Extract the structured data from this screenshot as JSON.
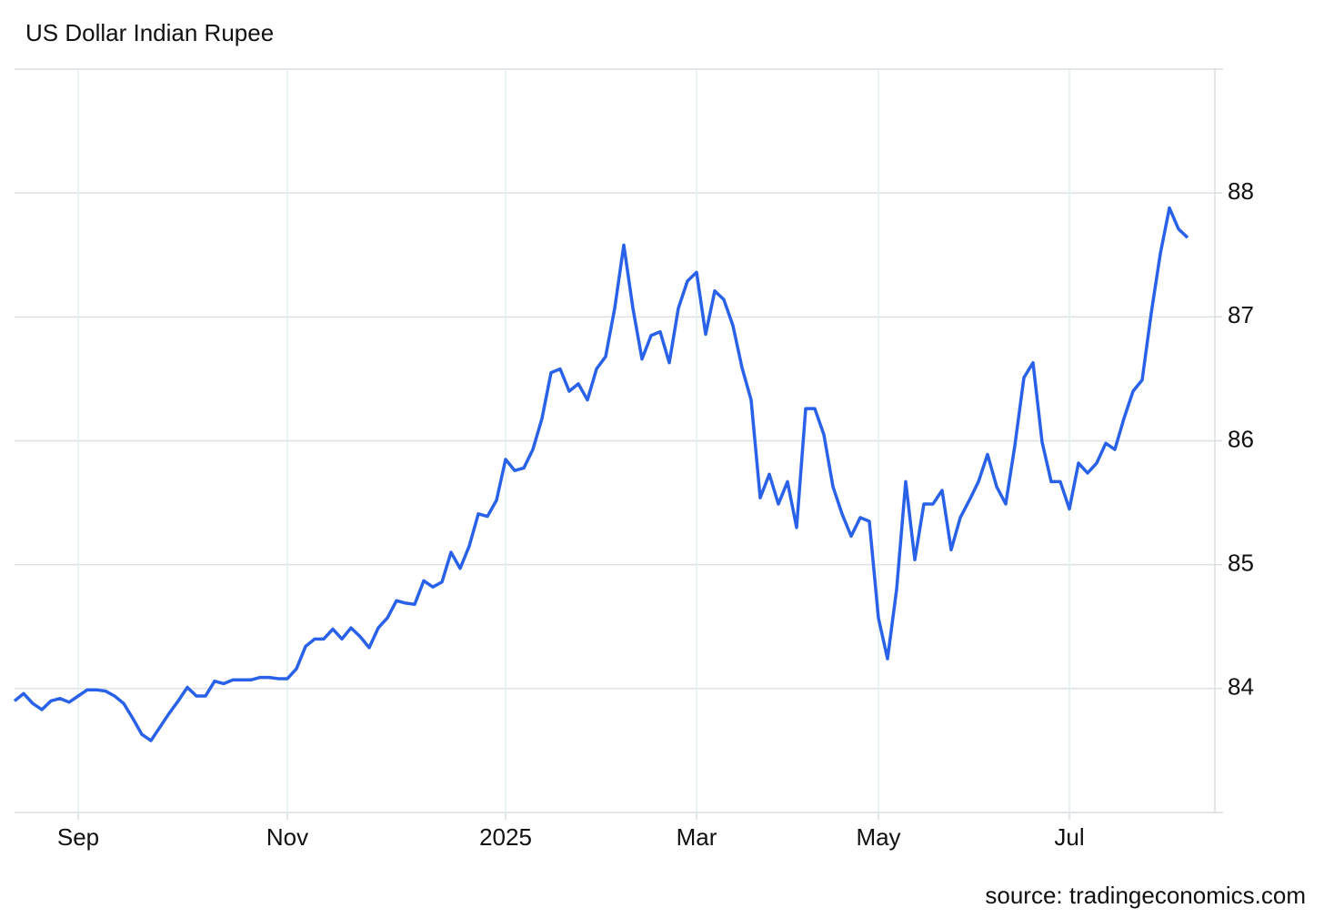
{
  "chart_data": {
    "type": "line",
    "title": "US Dollar Indian Rupee",
    "source": "source: tradingeconomics.com",
    "categories": [
      null,
      null,
      null,
      null,
      null,
      null,
      null,
      "Sep",
      null,
      null,
      null,
      null,
      null,
      null,
      null,
      null,
      null,
      null,
      null,
      null,
      null,
      null,
      null,
      null,
      null,
      null,
      null,
      null,
      null,
      null,
      "Nov",
      null,
      null,
      null,
      null,
      null,
      null,
      null,
      null,
      null,
      null,
      null,
      null,
      null,
      null,
      null,
      null,
      null,
      null,
      null,
      null,
      null,
      null,
      null,
      "2025",
      null,
      null,
      null,
      null,
      null,
      null,
      null,
      null,
      null,
      null,
      null,
      null,
      null,
      null,
      null,
      null,
      null,
      null,
      null,
      null,
      "Mar",
      null,
      null,
      null,
      null,
      null,
      null,
      null,
      null,
      null,
      null,
      null,
      null,
      null,
      null,
      null,
      null,
      null,
      null,
      null,
      "May",
      null,
      null,
      null,
      null,
      null,
      null,
      null,
      null,
      null,
      null,
      null,
      null,
      null,
      null,
      null,
      null,
      null,
      null,
      null,
      null,
      "Jul",
      null,
      null,
      null,
      null,
      null,
      null,
      null,
      null,
      null,
      null,
      null,
      null,
      null
    ],
    "series": [
      {
        "name": "US Dollar Indian Rupee",
        "color": "#2962e8",
        "values": [
          83.9,
          83.96,
          83.88,
          83.83,
          83.9,
          83.92,
          83.89,
          83.94,
          83.99,
          83.99,
          83.98,
          83.94,
          83.88,
          83.76,
          83.63,
          83.58,
          83.69,
          83.8,
          83.9,
          84.01,
          83.94,
          83.94,
          84.06,
          84.04,
          84.07,
          84.07,
          84.07,
          84.09,
          84.09,
          84.08,
          84.08,
          84.16,
          84.34,
          84.4,
          84.4,
          84.48,
          84.4,
          84.49,
          84.42,
          84.33,
          84.49,
          84.57,
          84.71,
          84.69,
          84.68,
          84.87,
          84.82,
          84.86,
          85.1,
          84.97,
          85.15,
          85.41,
          85.39,
          85.52,
          85.85,
          85.76,
          85.78,
          85.93,
          86.18,
          86.55,
          86.58,
          86.4,
          86.46,
          86.33,
          86.58,
          86.68,
          87.07,
          87.58,
          87.07,
          86.66,
          86.85,
          86.88,
          86.63,
          87.07,
          87.29,
          87.36,
          86.86,
          87.21,
          87.14,
          86.93,
          86.59,
          86.33,
          85.54,
          85.73,
          85.49,
          85.67,
          85.3,
          86.26,
          86.26,
          86.05,
          85.63,
          85.41,
          85.23,
          85.38,
          85.35,
          84.57,
          84.24,
          84.8,
          85.67,
          85.04,
          85.49,
          85.49,
          85.6,
          85.12,
          85.38,
          85.52,
          85.67,
          85.89,
          85.63,
          85.49,
          85.96,
          86.51,
          86.63,
          85.99,
          85.67,
          85.67,
          85.45,
          85.82,
          85.74,
          85.82,
          85.98,
          85.93,
          86.18,
          86.4,
          86.49,
          87.03,
          87.51,
          87.88,
          87.71,
          87.64
        ]
      }
    ],
    "ylim": [
      83,
      89
    ],
    "yticks": [
      84,
      85,
      86,
      87,
      88
    ],
    "grid": true
  }
}
